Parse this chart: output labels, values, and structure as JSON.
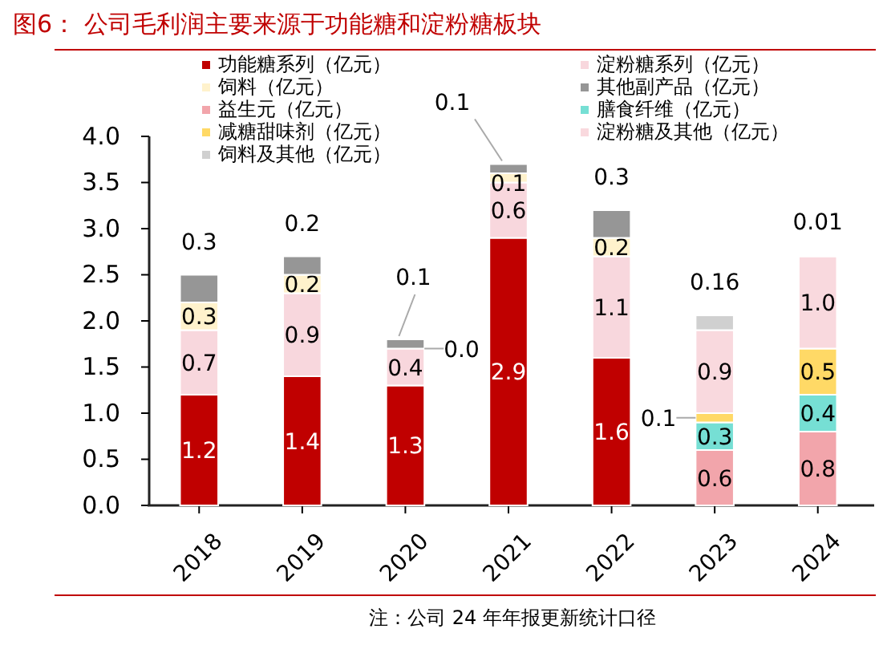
{
  "chart_data": {
    "type": "bar",
    "stacked": true,
    "title": "图6：  公司毛利润主要来源于功能糖和淀粉糖板块",
    "annotations": [
      "注：公司 24 年年报更新统计口径",
      {
        "text": "0.0",
        "x": "2020",
        "y": 1.7
      }
    ],
    "categories": [
      "2018",
      "2019",
      "2020",
      "2021",
      "2022",
      "2023",
      "2024"
    ],
    "ylim": [
      0,
      4
    ],
    "yticks": [
      {
        "value": 0,
        "label": "0.0"
      },
      {
        "value": 0.5,
        "label": "0.5"
      },
      {
        "value": 1,
        "label": "1.0"
      },
      {
        "value": 1.5,
        "label": "1.5"
      },
      {
        "value": 2,
        "label": "2.0"
      },
      {
        "value": 2.5,
        "label": "2.5"
      },
      {
        "value": 3,
        "label": "3.0"
      },
      {
        "value": 3.5,
        "label": "3.5"
      },
      {
        "value": 4,
        "label": "4.0"
      }
    ],
    "legend": "top",
    "grid": false,
    "series": [
      {
        "name": "功能糖系列（亿元）",
        "color": "#c00000",
        "values": [
          1.2,
          1.4,
          1.3,
          2.9,
          1.6,
          null,
          null
        ],
        "value_labels": [
          "1.2",
          "1.4",
          "1.3",
          "2.9",
          "1.6",
          null,
          null
        ]
      },
      {
        "name": "淀粉糖系列（亿元）",
        "color": "#f8d7dd",
        "values": [
          0.7,
          0.9,
          0.4,
          0.6,
          1.1,
          null,
          null
        ],
        "value_labels": [
          "0.7",
          "0.9",
          "0.4",
          "0.6",
          "1.1",
          null,
          null
        ]
      },
      {
        "name": "饲料（亿元）",
        "color": "#fff2cc",
        "values": [
          0.3,
          0.2,
          0.0,
          0.1,
          0.2,
          null,
          null
        ],
        "value_labels": [
          "0.3",
          "0.2",
          null,
          "0.1",
          "0.2",
          null,
          null
        ]
      },
      {
        "name": "其他副产品（亿元）",
        "color": "#969696",
        "values": [
          0.3,
          0.2,
          0.1,
          0.1,
          0.3,
          null,
          null
        ],
        "value_labels": [
          "0.3",
          "0.2",
          "0.1",
          "0.1",
          "0.3",
          null,
          null
        ]
      },
      {
        "name": "益生元（亿元）",
        "color": "#f2a5ab",
        "values": [
          null,
          null,
          null,
          null,
          null,
          0.6,
          0.8
        ],
        "value_labels": [
          null,
          null,
          null,
          null,
          null,
          "0.6",
          "0.8"
        ]
      },
      {
        "name": "膳食纤维（亿元）",
        "color": "#76dfd4",
        "values": [
          null,
          null,
          null,
          null,
          null,
          0.3,
          0.4
        ],
        "value_labels": [
          null,
          null,
          null,
          null,
          null,
          "0.3",
          "0.4"
        ]
      },
      {
        "name": "减糖甜味剂（亿元）",
        "color": "#ffd966",
        "values": [
          null,
          null,
          null,
          null,
          null,
          0.1,
          0.5
        ],
        "value_labels": [
          null,
          null,
          null,
          null,
          null,
          "0.1",
          "0.5"
        ]
      },
      {
        "name": "淀粉糖及其他（亿元）",
        "color": "#f9d9de",
        "values": [
          null,
          null,
          null,
          null,
          null,
          0.9,
          1.0
        ],
        "value_labels": [
          null,
          null,
          null,
          null,
          null,
          "0.9",
          "1.0"
        ]
      },
      {
        "name": "饲料及其他（亿元）",
        "color": "#d0d0d0",
        "values": [
          null,
          null,
          null,
          null,
          null,
          0.16,
          0.01
        ],
        "value_labels": [
          null,
          null,
          null,
          null,
          null,
          "0.16",
          "0.01"
        ]
      }
    ]
  }
}
